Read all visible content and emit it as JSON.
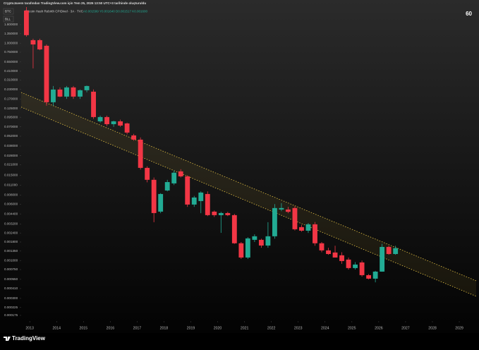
{
  "header": {
    "credit": "CryptoJavem tarafından TradingView.com için Tem 25, 2026 13:50 UTC+3 tarihinde oluşturuldu",
    "symbol": "BTC",
    "symbol2": "BLL",
    "description": "Bitcoin Hash Rebirth CPIDivel · 3A · TVC",
    "ohlc": "A0.001599  Y0.001640  D0.001517  K0.001600",
    "countdown": "60"
  },
  "footer": {
    "brand": "TradingView"
  },
  "chart_data": {
    "type": "candlestick",
    "log_scale": true,
    "up_color": "#22ab94",
    "down_color": "#f23645",
    "channel_color": "#e2c044",
    "xlim": [
      2012.68,
      2029.63
    ],
    "xticks": [
      2013,
      2014,
      2015,
      2016,
      2017,
      2018,
      2019,
      2020,
      2021,
      2022,
      2023,
      2024,
      2025,
      2026,
      2027,
      2028,
      2029
    ],
    "ylim": [
      0.000146,
      3.15
    ],
    "yticks": [
      {
        "value": 1.8,
        "label": "1.800000"
      },
      {
        "value": 1.35,
        "label": "1.350000"
      },
      {
        "value": 1.0,
        "label": "1.000000"
      },
      {
        "value": 0.75,
        "label": "0.750000"
      },
      {
        "value": 0.55,
        "label": "0.550000"
      },
      {
        "value": 0.41,
        "label": "0.410000"
      },
      {
        "value": 0.31,
        "label": "0.310000"
      },
      {
        "value": 0.23,
        "label": "0.230000"
      },
      {
        "value": 0.17,
        "label": "0.170000"
      },
      {
        "value": 0.125,
        "label": "0.125000"
      },
      {
        "value": 0.095,
        "label": "0.095000"
      },
      {
        "value": 0.07,
        "label": "0.070000"
      },
      {
        "value": 0.052,
        "label": "0.052000"
      },
      {
        "value": 0.038,
        "label": "0.038000"
      },
      {
        "value": 0.028,
        "label": "0.028000"
      },
      {
        "value": 0.021,
        "label": "0.021000"
      },
      {
        "value": 0.015,
        "label": "0.015000"
      },
      {
        "value": 0.011,
        "label": "0.011000"
      },
      {
        "value": 0.008,
        "label": "0.008000"
      },
      {
        "value": 0.006,
        "label": "0.006000"
      },
      {
        "value": 0.0044,
        "label": "0.004400"
      },
      {
        "value": 0.0032,
        "label": "0.003200"
      },
      {
        "value": 0.0024,
        "label": "0.002400"
      },
      {
        "value": 0.0018,
        "label": "0.001800"
      },
      {
        "value": 0.00135,
        "label": "0.001350"
      },
      {
        "value": 0.001,
        "label": "0.001000"
      },
      {
        "value": 0.00075,
        "label": "0.000750"
      },
      {
        "value": 0.00055,
        "label": "0.000550"
      },
      {
        "value": 0.00041,
        "label": "0.000410"
      },
      {
        "value": 0.0003,
        "label": "0.000300"
      },
      {
        "value": 0.000225,
        "label": "0.000225"
      },
      {
        "value": 0.000175,
        "label": "0.000175"
      }
    ],
    "x": [
      2012.75,
      2013.0,
      2013.25,
      2013.5,
      2013.75,
      2014.0,
      2014.25,
      2014.5,
      2014.75,
      2015.0,
      2015.25,
      2015.5,
      2015.75,
      2016.0,
      2016.25,
      2016.5,
      2016.75,
      2017.0,
      2017.25,
      2017.5,
      2017.75,
      2018.0,
      2018.25,
      2018.5,
      2018.75,
      2019.0,
      2019.25,
      2019.5,
      2019.75,
      2020.0,
      2020.25,
      2020.5,
      2020.75,
      2021.0,
      2021.25,
      2021.5,
      2021.75,
      2022.0,
      2022.25,
      2022.5,
      2022.75,
      2023.0,
      2023.25,
      2023.5,
      2023.75,
      2024.0,
      2024.25,
      2024.5,
      2024.75,
      2025.0,
      2025.25,
      2025.5,
      2025.75,
      2026.0,
      2026.25,
      2026.5
    ],
    "open": [
      2.82,
      1.1,
      1.1,
      0.92,
      0.153,
      0.229,
      0.183,
      0.245,
      0.183,
      0.224,
      0.214,
      0.0834,
      0.0955,
      0.0762,
      0.0834,
      0.078,
      0.0533,
      0.0466,
      0.019,
      0.013,
      0.00473,
      0.00926,
      0.0116,
      0.017,
      0.0145,
      0.00592,
      0.00662,
      0.00828,
      0.00473,
      0.00423,
      0.00452,
      0.00423,
      0.00173,
      0.0011,
      0.00193,
      0.00193,
      0.00161,
      0.00216,
      0.00506,
      0.00506,
      0.0053,
      0.00289,
      0.00258,
      0.00316,
      0.00173,
      0.00138,
      0.00129,
      0.00118,
      0.00103,
      0.000787,
      0.000941,
      0.000628,
      0.000562,
      0.000703,
      0.00154,
      0.00123
    ],
    "high": [
      3.15,
      1.15,
      1.15,
      0.96,
      0.256,
      0.245,
      0.256,
      0.256,
      0.23,
      0.26,
      0.23,
      0.1,
      0.1,
      0.085,
      0.088,
      0.08,
      0.056,
      0.05,
      0.02,
      0.014,
      0.0085,
      0.013,
      0.0175,
      0.0182,
      0.015,
      0.0078,
      0.009,
      0.009,
      0.0049,
      0.0047,
      0.0047,
      0.0044,
      0.0018,
      0.0021,
      0.0023,
      0.002,
      0.00338,
      0.006,
      0.0062,
      0.0055,
      0.0056,
      0.0031,
      0.0033,
      0.0034,
      0.0018,
      0.0015,
      0.0016,
      0.0013,
      0.0011,
      0.00095,
      0.001,
      0.00065,
      0.00072,
      0.0017,
      0.0016,
      0.0016
    ],
    "low": [
      1.23,
      0.449,
      0.8,
      0.137,
      0.137,
      0.18,
      0.17,
      0.17,
      0.17,
      0.21,
      0.09,
      0.08,
      0.072,
      0.07,
      0.07,
      0.055,
      0.045,
      0.018,
      0.012,
      0.00338,
      0.0045,
      0.009,
      0.011,
      0.014,
      0.0055,
      0.0055,
      0.0045,
      0.0041,
      0.004,
      0.00241,
      0.0041,
      0.0017,
      0.00105,
      0.00105,
      0.0018,
      0.0015,
      0.0015,
      0.002,
      0.0048,
      0.0045,
      0.0026,
      0.0025,
      0.0024,
      0.0016,
      0.0013,
      0.0012,
      0.0011,
      0.0009,
      0.00075,
      0.00075,
      0.0006,
      0.00055,
      0.0005,
      0.0007,
      0.0012,
      0.0012
    ],
    "close": [
      1.29,
      0.96,
      0.82,
      0.153,
      0.229,
      0.183,
      0.245,
      0.183,
      0.224,
      0.256,
      0.0955,
      0.0955,
      0.0762,
      0.0834,
      0.0729,
      0.0583,
      0.0466,
      0.019,
      0.013,
      0.00452,
      0.00828,
      0.0121,
      0.0163,
      0.0145,
      0.00592,
      0.00741,
      0.00867,
      0.00423,
      0.00423,
      0.00452,
      0.00423,
      0.00173,
      0.0011,
      0.00202,
      0.00216,
      0.00161,
      0.00216,
      0.0053,
      0.0053,
      0.0047,
      0.0027,
      0.00258,
      0.00316,
      0.00173,
      0.00138,
      0.00123,
      0.0011,
      0.000984,
      0.000787,
      0.00088,
      0.000628,
      0.000562,
      0.000703,
      0.00154,
      0.00123,
      0.00148
    ],
    "channel": {
      "upper": {
        "x": [
          2012.68,
          2029.63
        ],
        "y": [
          0.209,
          0.000525
        ]
      },
      "lower": {
        "x": [
          2012.68,
          2029.63
        ],
        "y": [
          0.131,
          0.000321
        ]
      }
    }
  }
}
